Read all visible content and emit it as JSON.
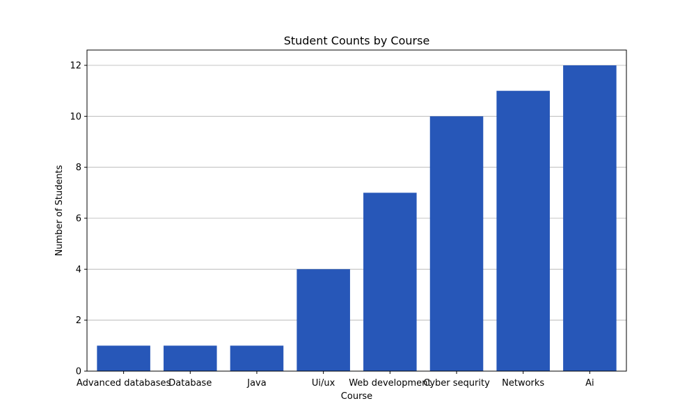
{
  "chart_data": {
    "type": "bar",
    "title": "Student Counts by Course",
    "xlabel": "Course",
    "ylabel": "Number of Students",
    "categories": [
      "Advanced databases",
      "Database",
      "Java",
      "Ui/ux",
      "Web development",
      "Cyber sequrity",
      "Networks",
      "Ai"
    ],
    "values": [
      1,
      1,
      1,
      4,
      7,
      10,
      11,
      12
    ],
    "ylim": [
      0,
      12.6
    ],
    "yticks": [
      0,
      2,
      4,
      6,
      8,
      10,
      12
    ],
    "grid": "y-axis",
    "bar_color": "#2757b8"
  }
}
